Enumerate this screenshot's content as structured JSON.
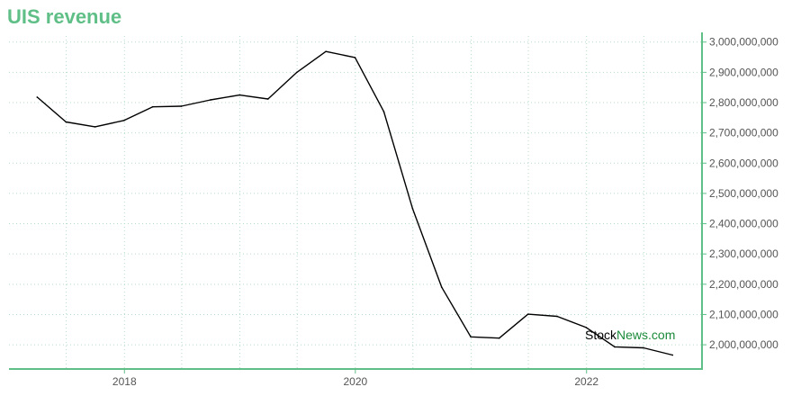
{
  "title": "UIS revenue",
  "watermark": {
    "part1": "Stock",
    "part2": "News",
    "part3": ".com"
  },
  "colors": {
    "title": "#5fbf87",
    "axis": "#5fbf87",
    "grid": "#b5dcc8",
    "line": "#000000"
  },
  "chart_data": {
    "type": "line",
    "title": "UIS revenue",
    "xlabel": "",
    "ylabel": "",
    "x_ticks": [
      "2018",
      "2020",
      "2022"
    ],
    "y_ticks": [
      "2,000,000,000",
      "2,100,000,000",
      "2,200,000,000",
      "2,300,000,000",
      "2,400,000,000",
      "2,500,000,000",
      "2,600,000,000",
      "2,700,000,000",
      "2,800,000,000",
      "2,900,000,000",
      "3,000,000,000"
    ],
    "ylim": [
      1920000000,
      3020000000
    ],
    "xlim": [
      "2017-01-01",
      "2023-01-01"
    ],
    "grid": true,
    "y_axis_position": "right",
    "series": [
      {
        "x": [
          "2017-03-31",
          "2017-06-30",
          "2017-09-30",
          "2017-12-31",
          "2018-03-31",
          "2018-06-30",
          "2018-09-30",
          "2018-12-31",
          "2019-03-31",
          "2019-06-30",
          "2019-09-30",
          "2019-12-31",
          "2020-03-31",
          "2020-06-30",
          "2020-09-30",
          "2020-12-31",
          "2021-03-31",
          "2021-06-30",
          "2021-09-30",
          "2021-12-31",
          "2022-03-31",
          "2022-06-30",
          "2022-09-30"
        ],
        "values": [
          2818000000,
          2736000000,
          2720000000,
          2741000000,
          2786000000,
          2788000000,
          2809000000,
          2825000000,
          2812000000,
          2900000000,
          2969000000,
          2949000000,
          2770000000,
          2450000000,
          2190000000,
          2026000000,
          2022000000,
          2101000000,
          2094000000,
          2057000000,
          1993000000,
          1990000000,
          1966000000
        ]
      }
    ]
  }
}
